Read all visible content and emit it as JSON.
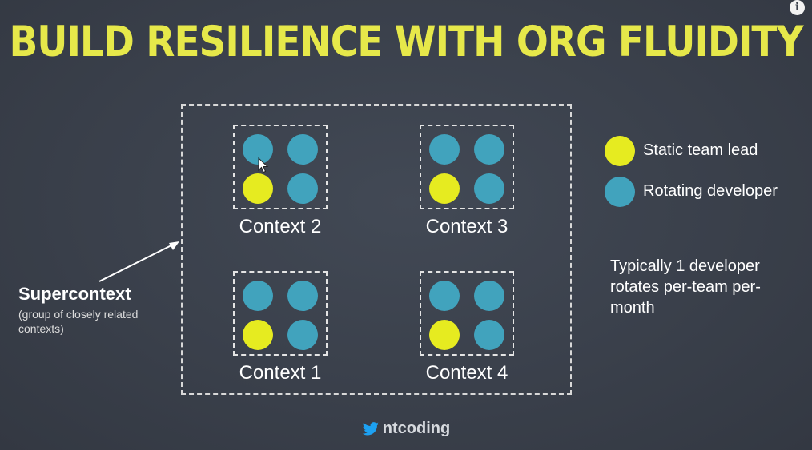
{
  "title": "BUILD RESILIENCE WITH ORG FLUIDITY",
  "colors": {
    "lead": "#e6eb20",
    "developer": "#41a3bd",
    "title": "#e6e84a"
  },
  "contexts": [
    {
      "label": "Context 2",
      "dots": [
        "developer",
        "developer",
        "lead",
        "developer"
      ]
    },
    {
      "label": "Context 3",
      "dots": [
        "developer",
        "developer",
        "lead",
        "developer"
      ]
    },
    {
      "label": "Context 1",
      "dots": [
        "developer",
        "developer",
        "lead",
        "developer"
      ]
    },
    {
      "label": "Context 4",
      "dots": [
        "developer",
        "developer",
        "lead",
        "developer"
      ]
    }
  ],
  "legend": {
    "lead_label": "Static team lead",
    "developer_label": "Rotating developer"
  },
  "note": "Typically 1 developer rotates per-team per-month",
  "supercontext": {
    "title": "Supercontext",
    "subtitle": "(group of closely related contexts)"
  },
  "handle": "ntcoding",
  "icons": {
    "info": "info-icon",
    "twitter": "twitter-bird-icon",
    "cursor": "mouse-pointer-icon"
  }
}
